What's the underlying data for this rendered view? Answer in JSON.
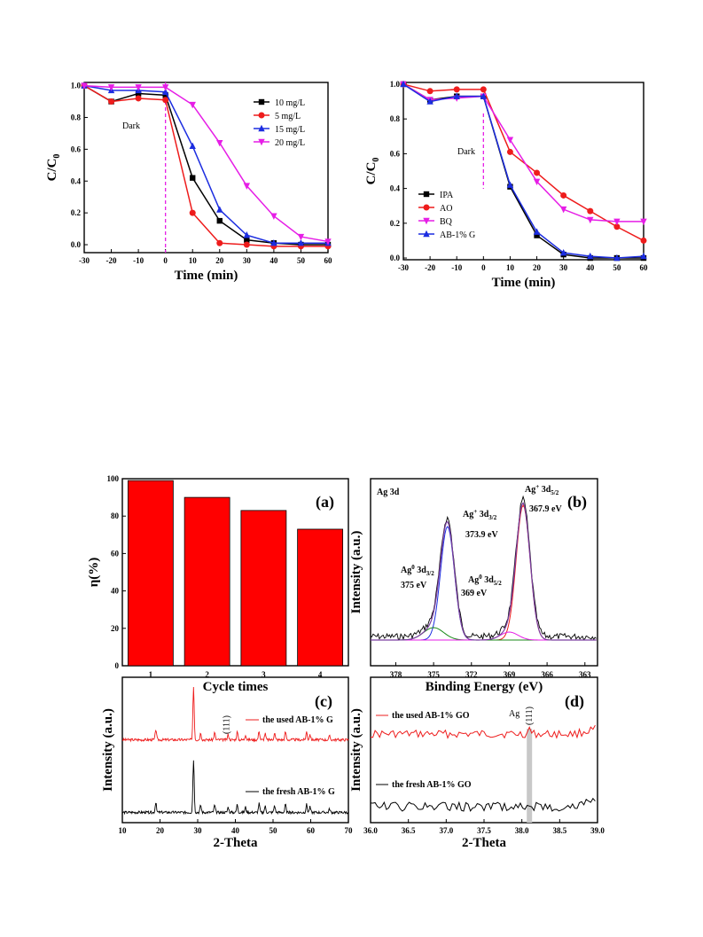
{
  "colors": {
    "black": "#000000",
    "red": "#ee1c1c",
    "blue": "#1c2de0",
    "magenta": "#e61ee6",
    "green": "#1a8a1a",
    "purple": "#7a3fa0",
    "bar": "#ff0000",
    "gray": "#c8c8c8"
  },
  "chart_data": [
    {
      "id": "top-left",
      "type": "line",
      "xlabel": "Time (min)",
      "ylabel": "C/C0",
      "xlim": [
        -30,
        60
      ],
      "ylim": [
        -0.05,
        1.02
      ],
      "xticks": [
        -30,
        -20,
        -10,
        0,
        10,
        20,
        30,
        40,
        50,
        60
      ],
      "yticks": [
        0.0,
        0.2,
        0.4,
        0.6,
        0.8,
        1.0
      ],
      "x": [
        -30,
        -20,
        -10,
        0,
        10,
        20,
        30,
        40,
        50,
        60
      ],
      "series": [
        {
          "name": "10 mg/L",
          "values": [
            1.0,
            0.9,
            0.95,
            0.94,
            0.42,
            0.15,
            0.03,
            0.01,
            0.0,
            0.0
          ],
          "marker": "square",
          "color": "black"
        },
        {
          "name": "5 mg/L",
          "values": [
            1.0,
            0.9,
            0.92,
            0.91,
            0.2,
            0.01,
            0.0,
            -0.01,
            -0.01,
            -0.01
          ],
          "marker": "circle",
          "color": "red"
        },
        {
          "name": "15 mg/L",
          "values": [
            1.0,
            0.97,
            0.97,
            0.96,
            0.62,
            0.22,
            0.06,
            0.01,
            0.01,
            0.01
          ],
          "marker": "triangle-up",
          "color": "blue"
        },
        {
          "name": "20 mg/L",
          "values": [
            1.0,
            0.99,
            0.99,
            0.99,
            0.88,
            0.64,
            0.37,
            0.18,
            0.05,
            0.02
          ],
          "marker": "triangle-down",
          "color": "magenta"
        }
      ],
      "annotations": [
        {
          "text": "Dark"
        }
      ],
      "legend": "top-right"
    },
    {
      "id": "top-right",
      "type": "line",
      "xlabel": "Time (min)",
      "ylabel": "C/C0",
      "xlim": [
        -30,
        60
      ],
      "ylim": [
        -0.01,
        1.01
      ],
      "xticks": [
        -30,
        -20,
        -10,
        0,
        10,
        20,
        30,
        40,
        50,
        60
      ],
      "yticks": [
        0.0,
        0.2,
        0.4,
        0.6,
        0.8,
        1.0
      ],
      "x": [
        -30,
        -20,
        -10,
        0,
        10,
        20,
        30,
        40,
        50,
        60
      ],
      "series": [
        {
          "name": "IPA",
          "values": [
            1.0,
            0.91,
            0.93,
            0.93,
            0.41,
            0.13,
            0.02,
            0.0,
            0.0,
            0.0
          ],
          "marker": "square",
          "color": "black"
        },
        {
          "name": "AO",
          "values": [
            1.0,
            0.96,
            0.97,
            0.97,
            0.61,
            0.49,
            0.36,
            0.27,
            0.18,
            0.1
          ],
          "marker": "circle",
          "color": "red"
        },
        {
          "name": "BQ",
          "values": [
            1.0,
            0.91,
            0.92,
            0.93,
            0.68,
            0.44,
            0.28,
            0.22,
            0.21,
            0.21
          ],
          "marker": "triangle-down",
          "color": "magenta"
        },
        {
          "name": "AB-1% G",
          "values": [
            1.0,
            0.9,
            0.93,
            0.93,
            0.42,
            0.15,
            0.03,
            0.01,
            0.0,
            0.01
          ],
          "marker": "triangle-up",
          "color": "blue"
        }
      ],
      "annotations": [
        {
          "text": "Dark"
        }
      ],
      "legend": "bottom-left"
    },
    {
      "id": "a",
      "type": "bar",
      "panel_label": "(a)",
      "xlabel": "Cycle times",
      "ylabel": "η(%)",
      "categories": [
        "1",
        "2",
        "3",
        "4"
      ],
      "values": [
        99,
        90,
        83,
        73
      ],
      "ylim": [
        0,
        100
      ],
      "yticks": [
        0,
        20,
        40,
        60,
        80,
        100
      ]
    },
    {
      "id": "b",
      "type": "line",
      "panel_label": "(b)",
      "title": "Ag 3d",
      "xlabel": "Binding Energy (eV)",
      "ylabel": "Intensity (a.u.)",
      "xlim": [
        380,
        362
      ],
      "xticks": [
        378,
        375,
        372,
        369,
        366,
        363
      ],
      "peaks": [
        {
          "center": 373.9,
          "label_main": "Ag",
          "sup": "+",
          "orbital": "3d",
          "sub": "3/2",
          "value": "373.9 eV"
        },
        {
          "center": 367.9,
          "label_main": "Ag",
          "sup": "+",
          "orbital": "3d",
          "sub": "5/2",
          "value": "367.9 eV"
        },
        {
          "center": 375.0,
          "label_main": "Ag",
          "sup": "0",
          "orbital": "3d",
          "sub": "3/2",
          "value": "375 eV"
        },
        {
          "center": 369.0,
          "label_main": "Ag",
          "sup": "0",
          "orbital": "3d",
          "sub": "5/2",
          "value": "369 eV"
        }
      ]
    },
    {
      "id": "c",
      "type": "line",
      "panel_label": "(c)",
      "xlabel": "2-Theta",
      "ylabel": "Intensity (a.u.)",
      "xlim": [
        10,
        70
      ],
      "xticks": [
        10,
        20,
        30,
        40,
        50,
        60,
        70
      ],
      "series": [
        {
          "name": "the used AB-1% G",
          "color": "red"
        },
        {
          "name": "the fresh AB-1% G",
          "color": "black"
        }
      ],
      "peak_label": "(111)"
    },
    {
      "id": "d",
      "type": "line",
      "panel_label": "(d)",
      "xlabel": "2-Theta",
      "ylabel": "Intensity (a.u.)",
      "xlim": [
        36.0,
        39.0
      ],
      "xticks": [
        "36.0",
        "36.5",
        "37.0",
        "37.5",
        "38.0",
        "38.5",
        "39.0"
      ],
      "series": [
        {
          "name": "the used AB-1% GO",
          "color": "red"
        },
        {
          "name": "the fresh AB-1% GO",
          "color": "black"
        }
      ],
      "highlight_x": 38.1,
      "peak_label": "Ag",
      "peak_label_hkl": "(111)"
    }
  ]
}
